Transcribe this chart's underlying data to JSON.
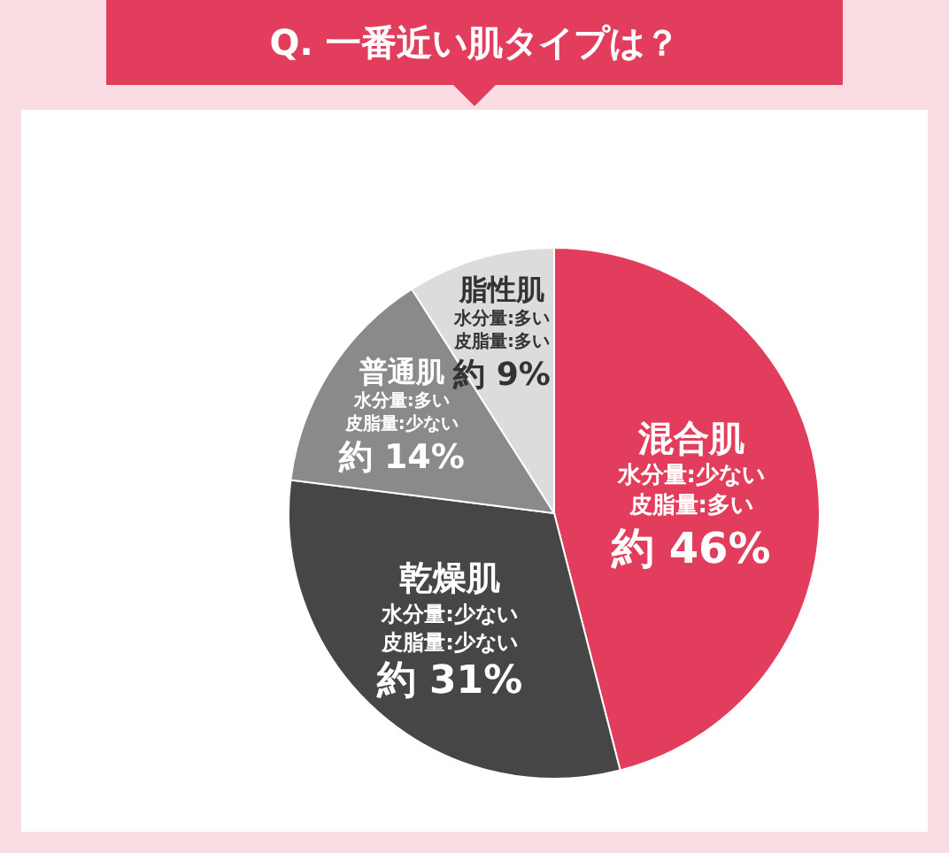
{
  "chart_data": {
    "type": "pie",
    "title": "Q. 一番近い肌タイプは？",
    "categories": [
      "混合肌",
      "乾燥肌",
      "普通肌",
      "脂性肌"
    ],
    "values": [
      46,
      31,
      14,
      9
    ],
    "value_labels": [
      "約 46%",
      "約 31%",
      "約 14%",
      "約 9%"
    ],
    "annotations": [
      "水分量:少ない",
      "皮脂量:多い",
      "水分量:少ない",
      "皮脂量:少ない",
      "水分量:多い",
      "皮脂量:少ない",
      "水分量:多い",
      "皮脂量:多い"
    ],
    "colors": [
      "#e23d5c",
      "#464646",
      "#8a8a8a",
      "#dcdcdc"
    ],
    "legend": false
  }
}
